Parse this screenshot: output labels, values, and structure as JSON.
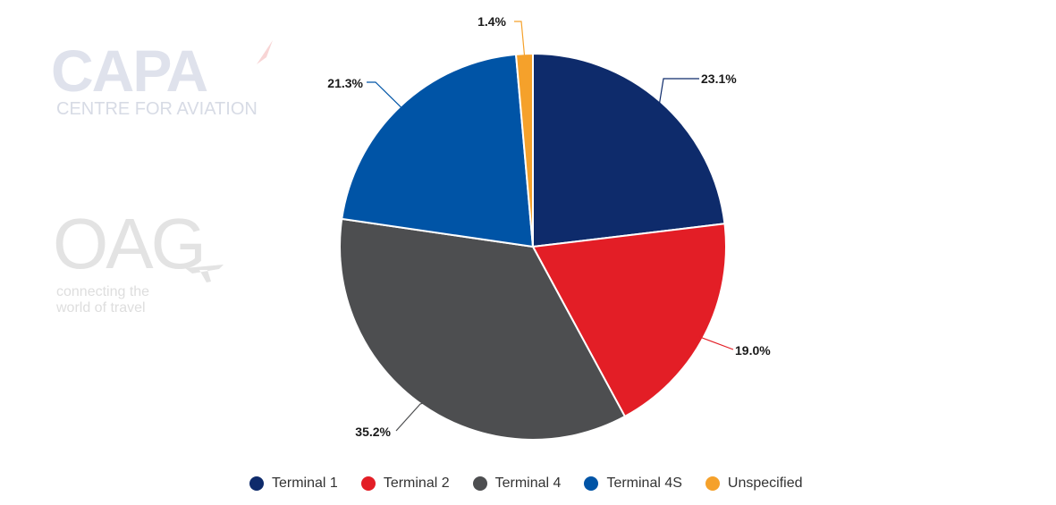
{
  "watermarks": {
    "capa": {
      "logo": "CAPA",
      "tagline": "CENTRE FOR AVIATION"
    },
    "oag": {
      "logo": "OAG",
      "tagline_line1": "connecting the",
      "tagline_line2": "world of travel"
    }
  },
  "chart_data": {
    "type": "pie",
    "start_angle_deg": 0,
    "direction": "clockwise",
    "slices": [
      {
        "label": "Terminal 1",
        "value": 23.1,
        "display": "23.1%",
        "color": "#0e2b6b"
      },
      {
        "label": "Terminal 2",
        "value": 19.0,
        "display": "19.0%",
        "color": "#e31e26"
      },
      {
        "label": "Terminal 4",
        "value": 35.2,
        "display": "35.2%",
        "color": "#4d4e50"
      },
      {
        "label": "Terminal 4S",
        "value": 21.3,
        "display": "21.3%",
        "color": "#0054a6"
      },
      {
        "label": "Unspecified",
        "value": 1.4,
        "display": "1.4%",
        "color": "#f5a12b"
      }
    ],
    "legend_position": "bottom"
  }
}
